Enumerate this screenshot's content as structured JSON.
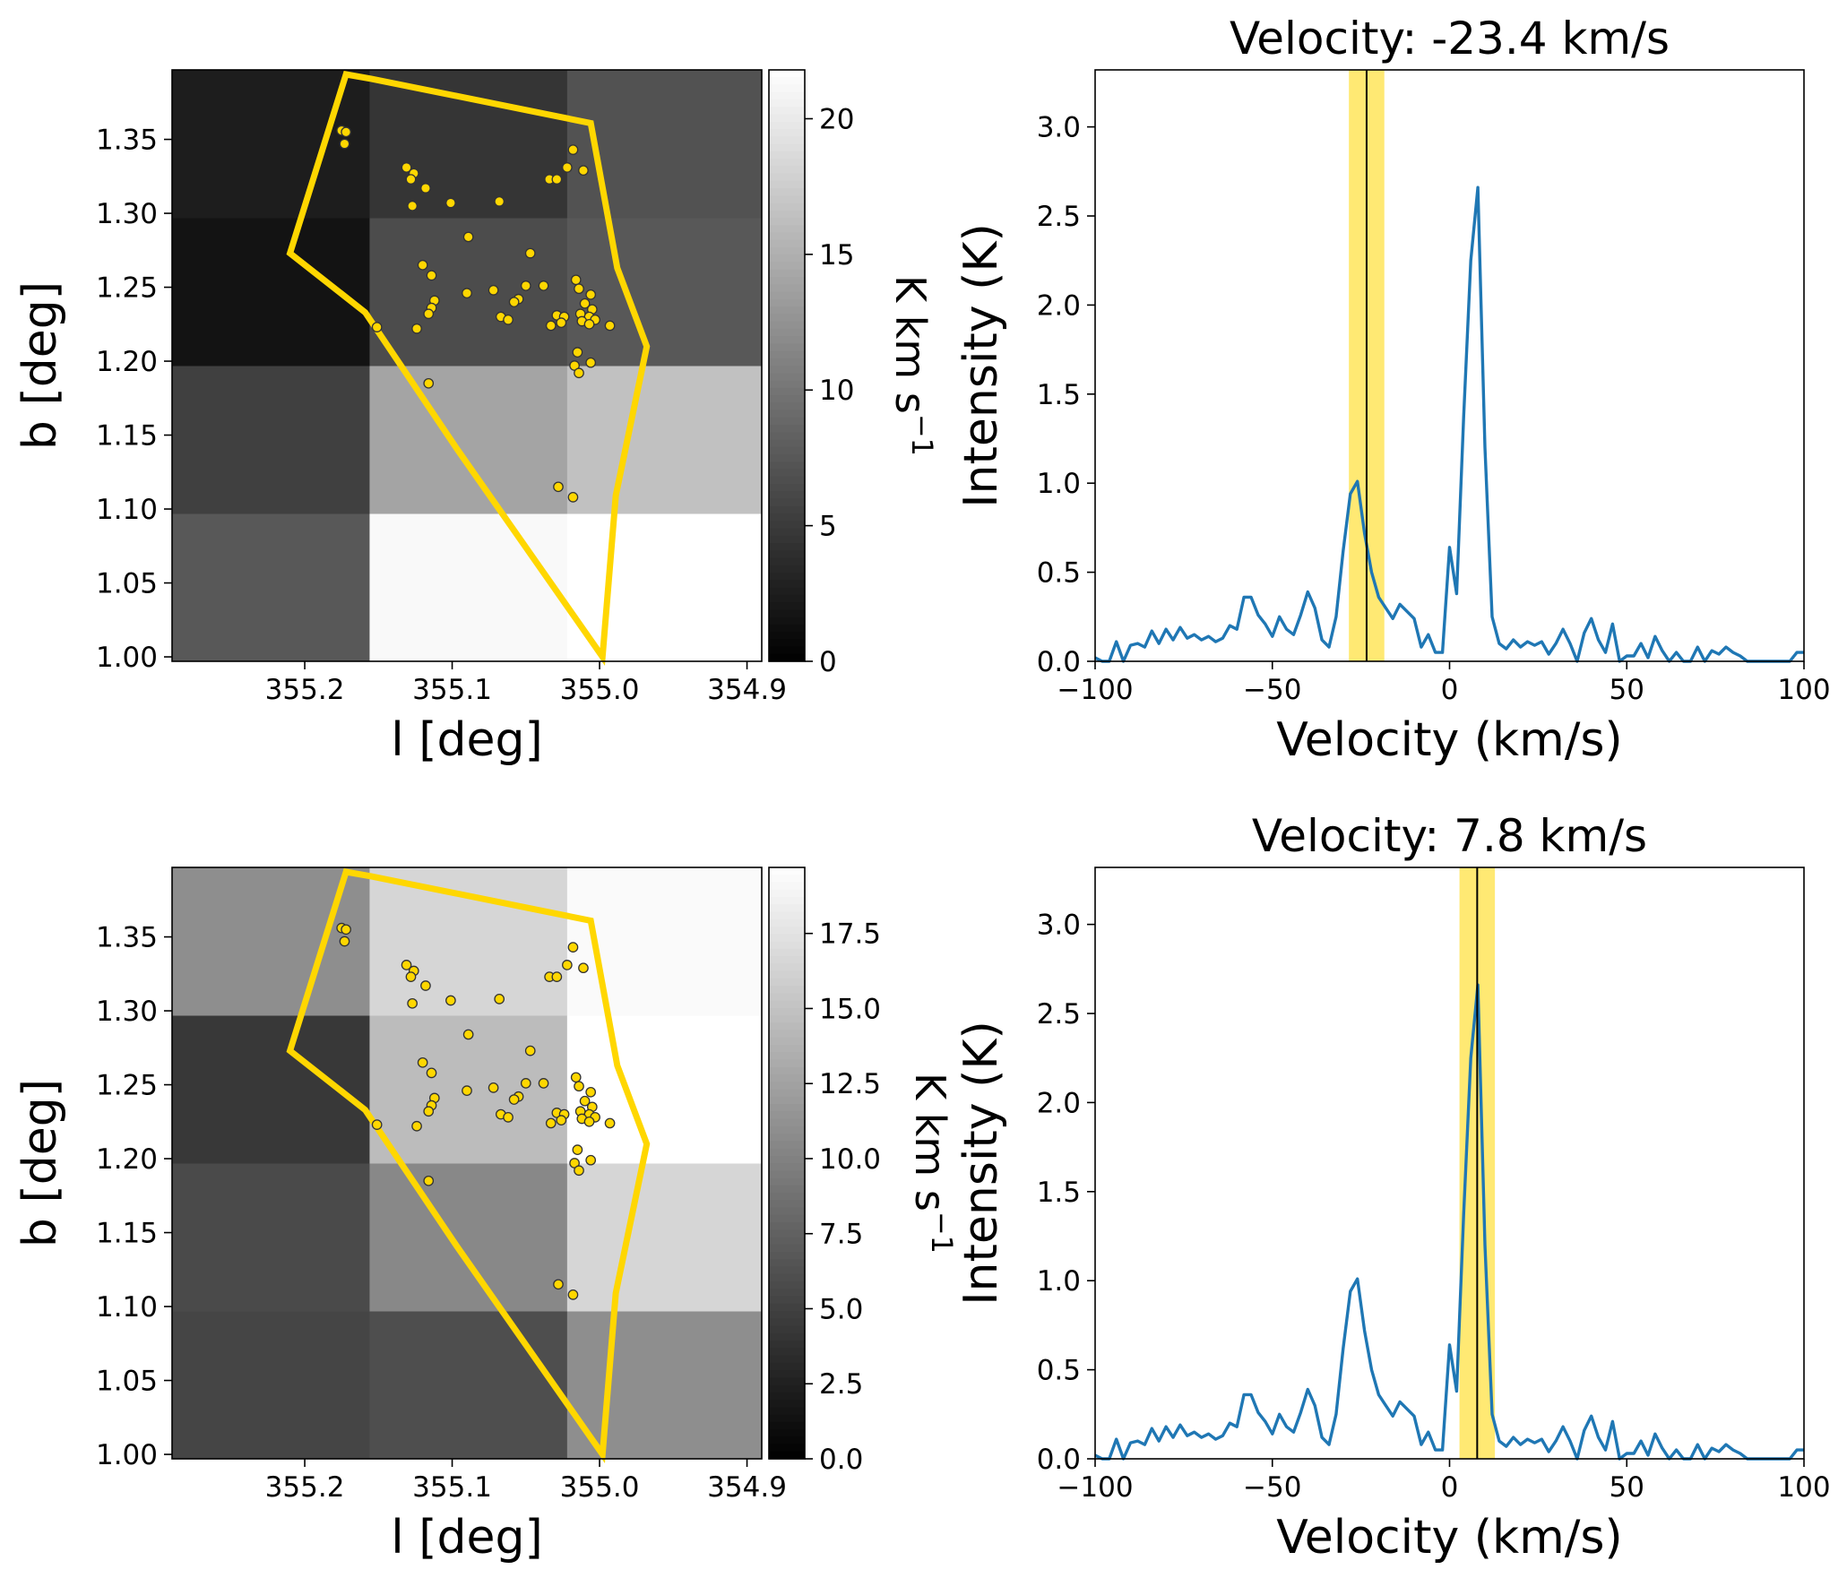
{
  "colors": {
    "polygon": "#ffd700",
    "points_fill": "#ffd700",
    "points_edge": "#333333",
    "spectrum_line": "#1f77b4",
    "velocity_band": "#ffd700",
    "velocity_marker": "#000000"
  },
  "chart_data": [
    {
      "type": "heatmap",
      "panel": "top-left",
      "xlabel": "l [deg]",
      "ylabel": "b [deg]",
      "xlim": [
        355.29,
        354.89
      ],
      "ylim": [
        0.997,
        1.397
      ],
      "x_ticks": [
        "355.2",
        "355.1",
        "355.0",
        "354.9"
      ],
      "y_ticks": [
        "1.00",
        "1.05",
        "1.10",
        "1.15",
        "1.20",
        "1.25",
        "1.30",
        "1.35"
      ],
      "colorbar": {
        "label": "K km s",
        "label_exp": "−1",
        "range": [
          0,
          21.8
        ],
        "ticks": [
          "0",
          "5",
          "10",
          "15",
          "20"
        ],
        "colormap": "gray"
      },
      "x_edges": [
        355.29,
        355.156,
        355.022,
        354.89
      ],
      "y_edges": [
        0.997,
        1.097,
        1.197,
        1.297,
        1.397
      ],
      "values": [
        [
          7.5,
          21.3,
          21.8
        ],
        [
          5.5,
          14.0,
          16.5
        ],
        [
          1.6,
          6.5,
          7.5
        ],
        [
          2.5,
          4.5,
          7.0
        ]
      ]
    },
    {
      "type": "line",
      "panel": "top-right",
      "title": "Velocity: -23.4 km/s",
      "xlabel": "Velocity (km/s)",
      "ylabel": "Intensity (K)",
      "xlim": [
        -100,
        100
      ],
      "ylim": [
        0,
        3.32
      ],
      "x_ticks": [
        "−100",
        "−50",
        "0",
        "50",
        "100"
      ],
      "y_ticks": [
        "0.0",
        "0.5",
        "1.0",
        "1.5",
        "2.0",
        "2.5",
        "3.0"
      ],
      "marker_velocity": -23.4,
      "band": [
        -28.4,
        -18.4
      ]
    },
    {
      "type": "heatmap",
      "panel": "bottom-left",
      "xlabel": "l [deg]",
      "ylabel": "b [deg]",
      "xlim": [
        355.29,
        354.89
      ],
      "ylim": [
        0.997,
        1.397
      ],
      "x_ticks": [
        "355.2",
        "355.1",
        "355.0",
        "354.9"
      ],
      "y_ticks": [
        "1.00",
        "1.05",
        "1.10",
        "1.15",
        "1.20",
        "1.25",
        "1.30",
        "1.35"
      ],
      "colorbar": {
        "label": "K km s",
        "label_exp": "−1",
        "range": [
          0,
          19.7
        ],
        "ticks": [
          "0.0",
          "2.5",
          "5.0",
          "7.5",
          "10.0",
          "12.5",
          "15.0",
          "17.5"
        ],
        "colormap": "gray"
      },
      "x_edges": [
        355.29,
        355.156,
        355.022,
        354.89
      ],
      "y_edges": [
        0.997,
        1.097,
        1.197,
        1.297,
        1.397
      ],
      "values": [
        [
          5.3,
          6.0,
          11.0
        ],
        [
          5.7,
          10.5,
          16.5
        ],
        [
          4.3,
          14.5,
          19.7
        ],
        [
          11.0,
          16.5,
          19.3
        ]
      ]
    },
    {
      "type": "line",
      "panel": "bottom-right",
      "title": "Velocity: 7.8 km/s",
      "xlabel": "Velocity (km/s)",
      "ylabel": "Intensity (K)",
      "xlim": [
        -100,
        100
      ],
      "ylim": [
        0,
        3.32
      ],
      "x_ticks": [
        "−100",
        "−50",
        "0",
        "50",
        "100"
      ],
      "y_ticks": [
        "0.0",
        "0.5",
        "1.0",
        "1.5",
        "2.0",
        "2.5",
        "3.0"
      ],
      "marker_velocity": 7.8,
      "band": [
        2.8,
        12.8
      ]
    }
  ],
  "spectrum": {
    "velocity": [
      -100,
      -98,
      -96,
      -94,
      -92,
      -90,
      -88,
      -86,
      -84,
      -82,
      -80,
      -78,
      -76,
      -74,
      -72,
      -70,
      -68,
      -66,
      -64,
      -62,
      -60,
      -58,
      -56,
      -54,
      -52,
      -50,
      -48,
      -46,
      -44,
      -42,
      -40,
      -38,
      -36,
      -34,
      -32,
      -30,
      -28,
      -26,
      -24,
      -22,
      -20,
      -18,
      -16,
      -14,
      -12,
      -10,
      -8,
      -6,
      -4,
      -2,
      0,
      2,
      4,
      6,
      8,
      10,
      12,
      14,
      16,
      18,
      20,
      22,
      24,
      26,
      28,
      30,
      32,
      34,
      36,
      38,
      40,
      42,
      44,
      46,
      48,
      50,
      52,
      54,
      56,
      58,
      60,
      62,
      64,
      66,
      68,
      70,
      72,
      74,
      76,
      78,
      80,
      82,
      84,
      86,
      88,
      90,
      92,
      94,
      96,
      98,
      100
    ],
    "intensity": [
      0.02,
      0.0,
      0.0,
      0.11,
      0.0,
      0.09,
      0.1,
      0.08,
      0.17,
      0.1,
      0.18,
      0.12,
      0.19,
      0.13,
      0.15,
      0.12,
      0.14,
      0.11,
      0.13,
      0.2,
      0.18,
      0.36,
      0.36,
      0.26,
      0.21,
      0.14,
      0.25,
      0.18,
      0.15,
      0.26,
      0.39,
      0.3,
      0.12,
      0.08,
      0.25,
      0.62,
      0.94,
      1.01,
      0.72,
      0.5,
      0.36,
      0.3,
      0.24,
      0.32,
      0.28,
      0.24,
      0.08,
      0.15,
      0.05,
      0.05,
      0.64,
      0.38,
      1.38,
      2.25,
      2.66,
      1.2,
      0.25,
      0.1,
      0.07,
      0.12,
      0.08,
      0.11,
      0.09,
      0.11,
      0.04,
      0.1,
      0.18,
      0.1,
      0.0,
      0.16,
      0.24,
      0.12,
      0.05,
      0.21,
      0.0,
      0.03,
      0.03,
      0.1,
      0.02,
      0.14,
      0.06,
      0.0,
      0.05,
      0.0,
      0.0,
      0.08,
      0.0,
      0.06,
      0.04,
      0.08,
      0.05,
      0.03,
      0.0,
      0.0,
      0.0,
      0.0,
      0.0,
      0.0,
      0.0,
      0.05,
      0.05
    ]
  },
  "polygon_lb": [
    [
      355.172,
      1.394
    ],
    [
      355.155,
      1.391
    ],
    [
      355.006,
      1.361
    ],
    [
      354.988,
      1.263
    ],
    [
      354.968,
      1.21
    ],
    [
      354.989,
      1.109
    ],
    [
      354.998,
      1.0
    ],
    [
      355.097,
      1.141
    ],
    [
      355.159,
      1.233
    ],
    [
      355.21,
      1.273
    ]
  ],
  "sources_lb": [
    [
      355.175,
      1.356
    ],
    [
      355.172,
      1.355
    ],
    [
      355.173,
      1.347
    ],
    [
      355.131,
      1.331
    ],
    [
      355.126,
      1.327
    ],
    [
      355.128,
      1.323
    ],
    [
      355.118,
      1.317
    ],
    [
      355.127,
      1.305
    ],
    [
      355.101,
      1.307
    ],
    [
      355.068,
      1.308
    ],
    [
      355.089,
      1.284
    ],
    [
      355.047,
      1.273
    ],
    [
      355.034,
      1.323
    ],
    [
      355.029,
      1.323
    ],
    [
      355.022,
      1.331
    ],
    [
      355.018,
      1.343
    ],
    [
      355.011,
      1.329
    ],
    [
      355.12,
      1.265
    ],
    [
      355.114,
      1.258
    ],
    [
      355.09,
      1.246
    ],
    [
      355.072,
      1.248
    ],
    [
      355.055,
      1.242
    ],
    [
      355.058,
      1.24
    ],
    [
      355.05,
      1.251
    ],
    [
      355.038,
      1.251
    ],
    [
      355.067,
      1.23
    ],
    [
      355.062,
      1.228
    ],
    [
      355.112,
      1.241
    ],
    [
      355.114,
      1.236
    ],
    [
      355.116,
      1.232
    ],
    [
      355.124,
      1.222
    ],
    [
      355.151,
      1.223
    ],
    [
      355.029,
      1.231
    ],
    [
      355.024,
      1.23
    ],
    [
      355.033,
      1.224
    ],
    [
      355.026,
      1.226
    ],
    [
      355.016,
      1.255
    ],
    [
      355.014,
      1.249
    ],
    [
      355.006,
      1.245
    ],
    [
      355.01,
      1.239
    ],
    [
      355.005,
      1.235
    ],
    [
      355.013,
      1.232
    ],
    [
      355.007,
      1.23
    ],
    [
      355.012,
      1.227
    ],
    [
      355.003,
      1.228
    ],
    [
      355.007,
      1.225
    ],
    [
      354.993,
      1.224
    ],
    [
      355.015,
      1.206
    ],
    [
      355.006,
      1.199
    ],
    [
      355.017,
      1.197
    ],
    [
      355.014,
      1.192
    ],
    [
      355.116,
      1.185
    ],
    [
      355.028,
      1.115
    ],
    [
      355.018,
      1.108
    ]
  ]
}
